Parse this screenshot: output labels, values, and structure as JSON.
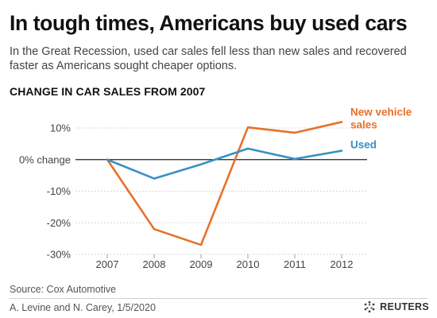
{
  "header": {
    "title": "In tough times, Americans buy used cars",
    "subtitle": "In the Great Recession, used car sales fell less than new sales and recovered faster as Americans sought cheaper options.",
    "chart_heading": "CHANGE IN CAR SALES FROM 2007"
  },
  "footer": {
    "source": "Source: Cox Automotive",
    "credit": "A. Levine and N. Carey,  1/5/2020",
    "brand": "REUTERS"
  },
  "colors": {
    "new_vehicle": "#e8702a",
    "used": "#3b8fc4",
    "grid": "#cccccc",
    "zero_line": "#222222"
  },
  "chart_data": {
    "type": "line",
    "x": [
      "2007",
      "2008",
      "2009",
      "2010",
      "2011",
      "2012"
    ],
    "ylim": [
      -30,
      10
    ],
    "y_ticks": [
      10,
      0,
      -10,
      -20,
      -30
    ],
    "y_tick_labels": [
      "10%",
      "0% change",
      "-10%",
      "-20%",
      "-30%"
    ],
    "grid": "horizontal",
    "series": [
      {
        "name": "New vehicle sales",
        "label_lines": [
          "New vehicle",
          "sales"
        ],
        "color": "#e8702a",
        "values": [
          0,
          -22,
          -27,
          10.2,
          8.5,
          11.9
        ]
      },
      {
        "name": "Used",
        "label_lines": [
          "Used"
        ],
        "color": "#3b8fc4",
        "values": [
          0,
          -6,
          -1.5,
          3.5,
          0.2,
          2.8
        ]
      }
    ]
  }
}
